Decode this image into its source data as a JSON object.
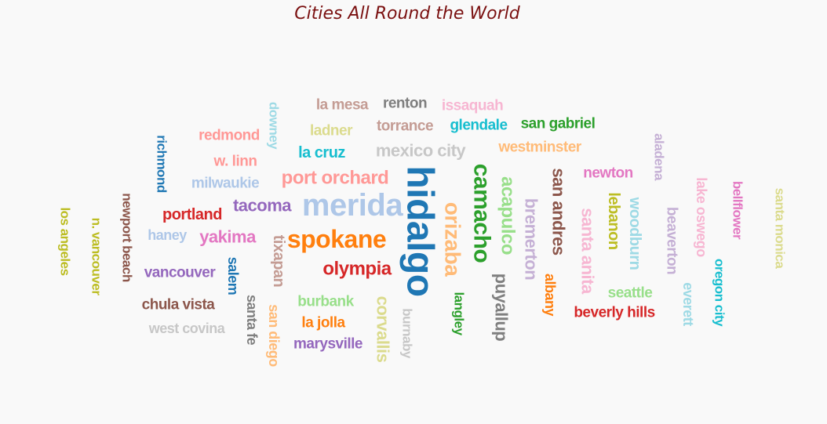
{
  "chart_data": {
    "type": "wordcloud",
    "title": "Cities All Round the World",
    "words": [
      {
        "text": "hidalgo",
        "color": "#1f77b4",
        "rotated": true
      },
      {
        "text": "merida",
        "color": "#aec7e8",
        "rotated": false
      },
      {
        "text": "spokane",
        "color": "#ff7f0e",
        "rotated": false
      },
      {
        "text": "camacho",
        "color": "#2ca02c",
        "rotated": true
      },
      {
        "text": "orizaba",
        "color": "#ffbb78",
        "rotated": true
      },
      {
        "text": "acapulco",
        "color": "#98df8a",
        "rotated": true
      },
      {
        "text": "olympia",
        "color": "#d62728",
        "rotated": false
      },
      {
        "text": "port orchard",
        "color": "#ff9896",
        "rotated": false
      },
      {
        "text": "tacoma",
        "color": "#9467bd",
        "rotated": false
      },
      {
        "text": "bremerton",
        "color": "#c5b0d5",
        "rotated": true
      },
      {
        "text": "san andres",
        "color": "#8c564b",
        "rotated": true
      },
      {
        "text": "santa anita",
        "color": "#f7b6d2",
        "rotated": true
      },
      {
        "text": "yakima",
        "color": "#e377c2",
        "rotated": false
      },
      {
        "text": "puyallup",
        "color": "#7f7f7f",
        "rotated": true
      },
      {
        "text": "mexico city",
        "color": "#c7c7c7",
        "rotated": false
      },
      {
        "text": "corvallis",
        "color": "#dbdb8d",
        "rotated": true
      },
      {
        "text": "lebanon",
        "color": "#bcbd22",
        "rotated": true
      },
      {
        "text": "la cruz",
        "color": "#17becf",
        "rotated": false
      },
      {
        "text": "woodburn",
        "color": "#9edae5",
        "rotated": true
      },
      {
        "text": "portland",
        "color": "#d62728",
        "rotated": false
      },
      {
        "text": "tixapan",
        "color": "#c49c94",
        "rotated": true
      },
      {
        "text": "glendale",
        "color": "#17becf",
        "rotated": false
      },
      {
        "text": "san gabriel",
        "color": "#2ca02c",
        "rotated": false
      },
      {
        "text": "torrance",
        "color": "#c49c94",
        "rotated": false
      },
      {
        "text": "newton",
        "color": "#e377c2",
        "rotated": false
      },
      {
        "text": "beaverton",
        "color": "#c5b0d5",
        "rotated": true
      },
      {
        "text": "la mesa",
        "color": "#c49c94",
        "rotated": false
      },
      {
        "text": "renton",
        "color": "#7f7f7f",
        "rotated": false
      },
      {
        "text": "issaquah",
        "color": "#f7b6d2",
        "rotated": false
      },
      {
        "text": "ladner",
        "color": "#dbdb8d",
        "rotated": false
      },
      {
        "text": "westminster",
        "color": "#ffbb78",
        "rotated": false
      },
      {
        "text": "redmond",
        "color": "#ff9896",
        "rotated": false
      },
      {
        "text": "w. linn",
        "color": "#ff9896",
        "rotated": false
      },
      {
        "text": "milwaukie",
        "color": "#aec7e8",
        "rotated": false
      },
      {
        "text": "haney",
        "color": "#aec7e8",
        "rotated": false
      },
      {
        "text": "salem",
        "color": "#1f77b4",
        "rotated": true
      },
      {
        "text": "vancouver",
        "color": "#9467bd",
        "rotated": false
      },
      {
        "text": "chula vista",
        "color": "#8c564b",
        "rotated": false
      },
      {
        "text": "west covina",
        "color": "#c7c7c7",
        "rotated": false
      },
      {
        "text": "santa fe",
        "color": "#7f7f7f",
        "rotated": true
      },
      {
        "text": "san diego",
        "color": "#ffbb78",
        "rotated": true
      },
      {
        "text": "burbank",
        "color": "#98df8a",
        "rotated": false
      },
      {
        "text": "la jolla",
        "color": "#ff7f0e",
        "rotated": false
      },
      {
        "text": "marysville",
        "color": "#9467bd",
        "rotated": false
      },
      {
        "text": "burnaby",
        "color": "#c7c7c7",
        "rotated": true
      },
      {
        "text": "langley",
        "color": "#2ca02c",
        "rotated": true
      },
      {
        "text": "albany",
        "color": "#ff7f0e",
        "rotated": true
      },
      {
        "text": "seattle",
        "color": "#98df8a",
        "rotated": false
      },
      {
        "text": "beverly hills",
        "color": "#d62728",
        "rotated": false
      },
      {
        "text": "everett",
        "color": "#9edae5",
        "rotated": true
      },
      {
        "text": "oregon city",
        "color": "#17becf",
        "rotated": true
      },
      {
        "text": "lake oswego",
        "color": "#f7b6d2",
        "rotated": true
      },
      {
        "text": "bellflower",
        "color": "#e377c2",
        "rotated": true
      },
      {
        "text": "santa monica",
        "color": "#dbdb8d",
        "rotated": true
      },
      {
        "text": "aladena",
        "color": "#c5b0d5",
        "rotated": true
      },
      {
        "text": "downey",
        "color": "#9edae5",
        "rotated": true
      },
      {
        "text": "richmond",
        "color": "#1f77b4",
        "rotated": true
      },
      {
        "text": "newport beach",
        "color": "#8c564b",
        "rotated": true
      },
      {
        "text": "n. vancouver",
        "color": "#bcbd22",
        "rotated": true
      },
      {
        "text": "los angeles",
        "color": "#bcbd22",
        "rotated": true
      }
    ]
  }
}
